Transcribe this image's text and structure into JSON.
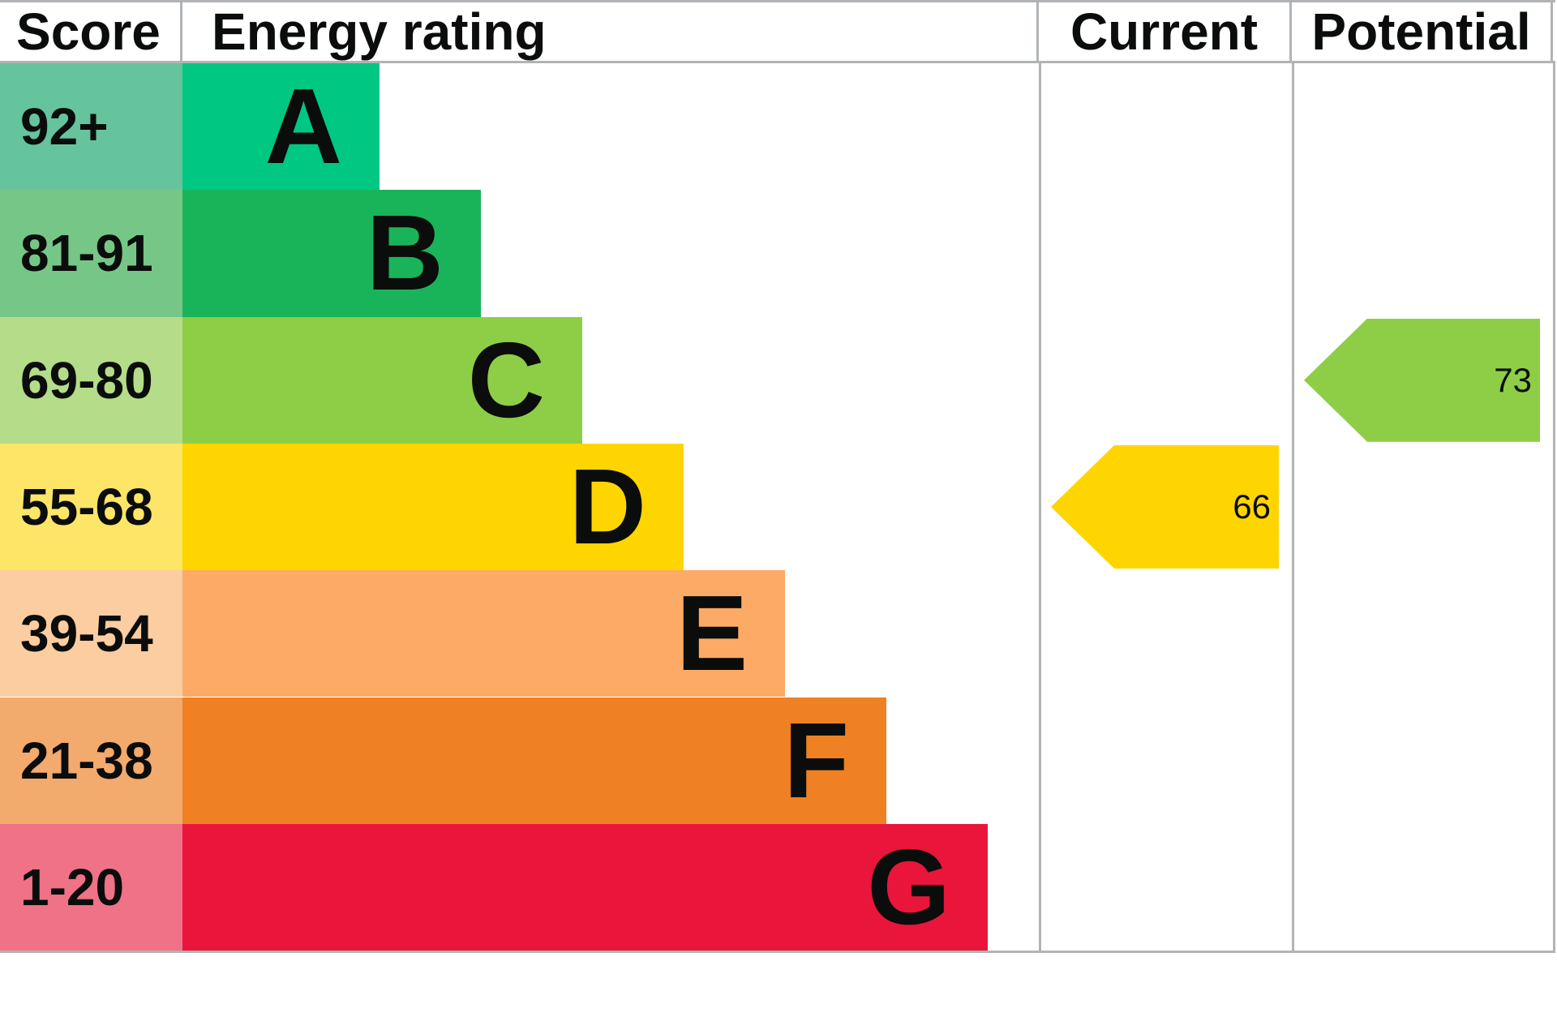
{
  "headers": {
    "score": "Score",
    "rating": "Energy rating",
    "current": "Current",
    "potential": "Potential"
  },
  "chart_data": {
    "type": "bar",
    "description": "EPC energy efficiency rating chart, bands A-G with score ranges, current and potential rating arrows",
    "categories": [
      "A",
      "B",
      "C",
      "D",
      "E",
      "F",
      "G"
    ],
    "bands": [
      {
        "score_range": "92+",
        "letter": "A",
        "bar_color": "#00c781",
        "score_color": "#65c49e"
      },
      {
        "score_range": "81-91",
        "letter": "B",
        "bar_color": "#19b459",
        "score_color": "#76c787"
      },
      {
        "score_range": "69-80",
        "letter": "C",
        "bar_color": "#8dce46",
        "score_color": "#b5dc88"
      },
      {
        "score_range": "55-68",
        "letter": "D",
        "bar_color": "#ffd500",
        "score_color": "#fde567"
      },
      {
        "score_range": "39-54",
        "letter": "E",
        "bar_color": "#fcaa65",
        "score_color": "#fbcda0"
      },
      {
        "score_range": "21-38",
        "letter": "F",
        "bar_color": "#ef8023",
        "score_color": "#f2aa6d"
      },
      {
        "score_range": "1-20",
        "letter": "G",
        "bar_color": "#e9153b",
        "score_color": "#f07286"
      }
    ],
    "current": {
      "value": "66",
      "band": "D",
      "band_index": 3,
      "color": "#ffd500"
    },
    "potential": {
      "value": "73",
      "band": "C",
      "band_index": 2,
      "color": "#8dce46"
    },
    "legend_position": "none",
    "grid": false
  },
  "style": {
    "border_color": "#b1b4b6"
  }
}
